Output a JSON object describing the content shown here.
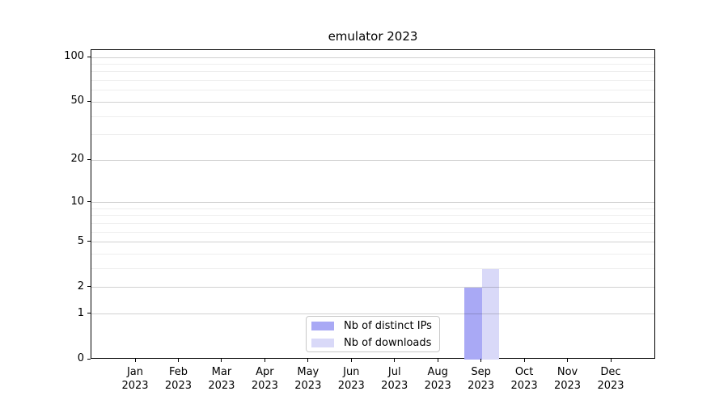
{
  "chart_data": {
    "type": "bar",
    "title": "emulator 2023",
    "categories": [
      "Jan 2023",
      "Feb 2023",
      "Mar 2023",
      "Apr 2023",
      "May 2023",
      "Jun 2023",
      "Jul 2023",
      "Aug 2023",
      "Sep 2023",
      "Oct 2023",
      "Nov 2023",
      "Dec 2023"
    ],
    "series": [
      {
        "name": "Nb of distinct IPs",
        "color": "#a9a9f5",
        "values": [
          0,
          0,
          0,
          0,
          0,
          0,
          0,
          0,
          2,
          0,
          0,
          0
        ]
      },
      {
        "name": "Nb of downloads",
        "color": "#d9d9f8",
        "values": [
          0,
          0,
          0,
          0,
          0,
          0,
          0,
          0,
          3,
          0,
          0,
          0
        ]
      }
    ],
    "xlabel": "",
    "ylabel": "",
    "yscale": "log1p",
    "ylim": [
      0,
      112
    ],
    "y_tick_values": [
      0,
      1,
      2,
      5,
      10,
      20,
      50,
      100
    ],
    "y_minor_gridline_values": [
      3,
      4,
      6,
      7,
      8,
      9,
      30,
      40,
      60,
      70,
      80,
      90
    ],
    "grid": "horizontal, drawn above bars",
    "legend_position": "lower center"
  },
  "colors": {
    "grid_major": "rgba(0,0,0,0.18)",
    "grid_minor": "rgba(0,0,0,0.065)",
    "axis": "#000000",
    "legend_border": "#c9c9c9",
    "background": "#ffffff",
    "text": "#000000"
  }
}
